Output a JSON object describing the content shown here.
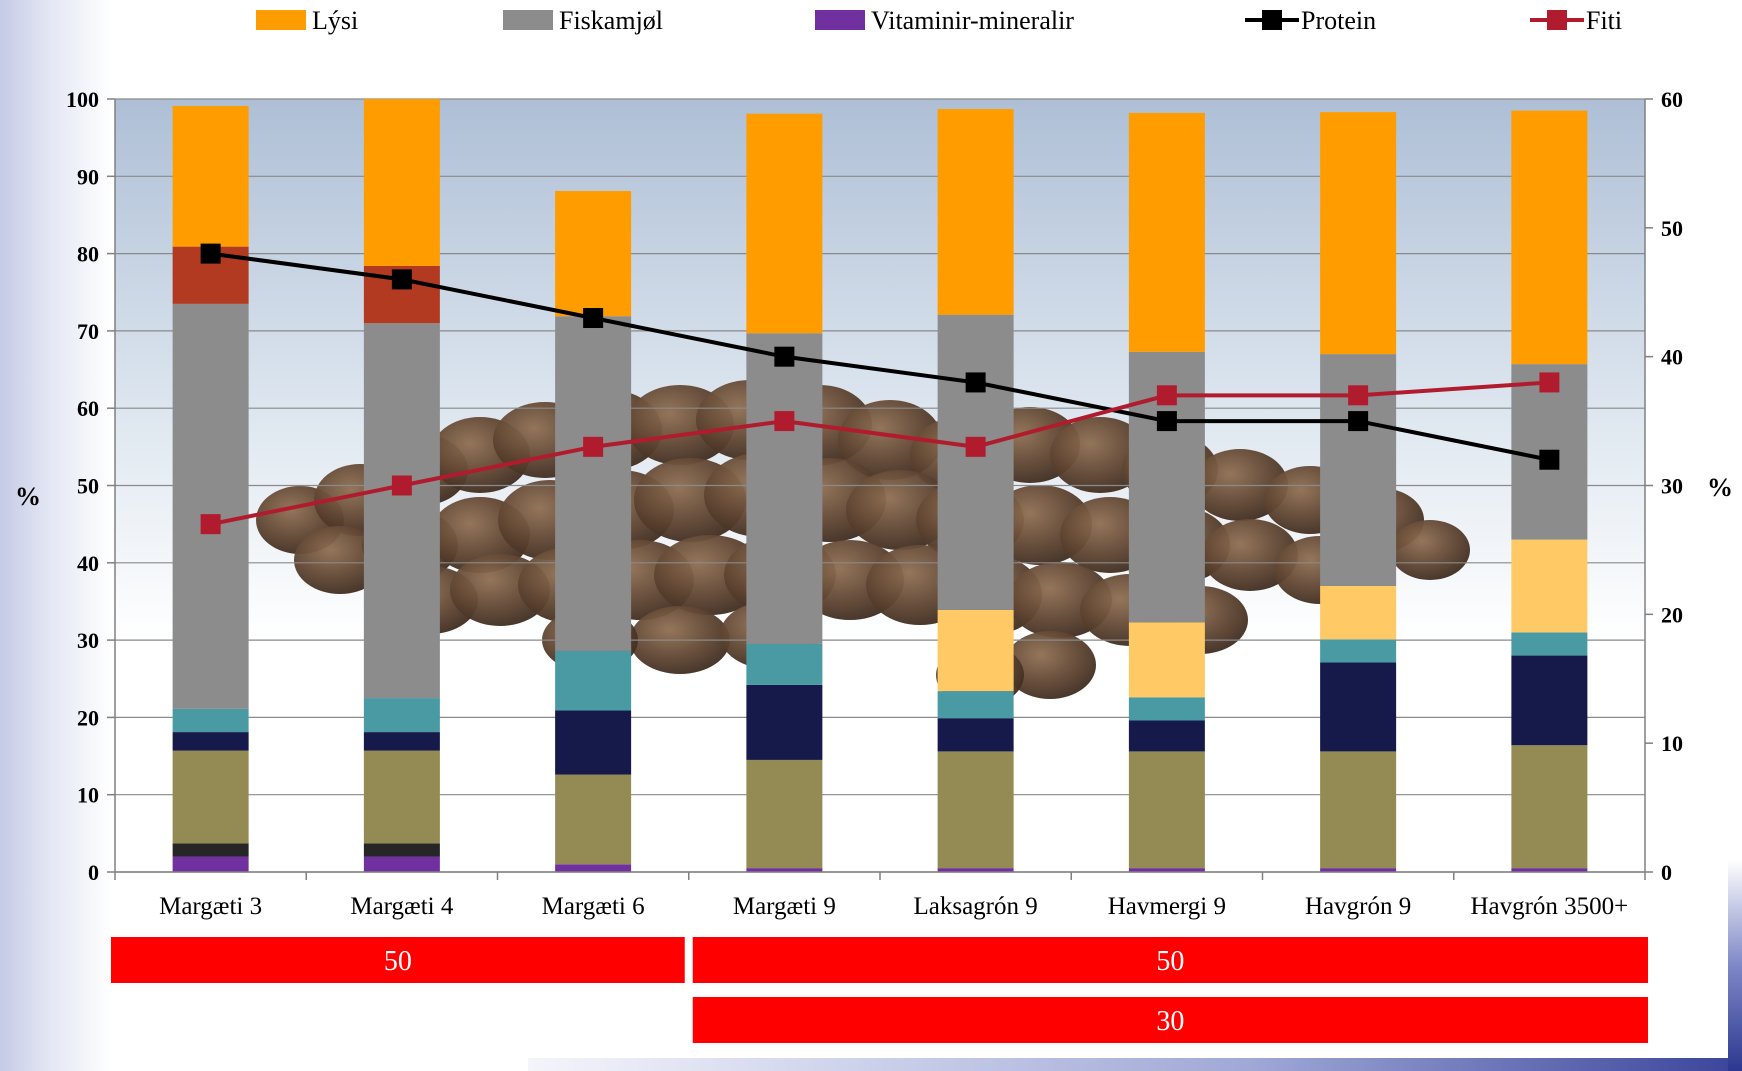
{
  "chart_data": {
    "type": "bar",
    "subtype": "stacked-bar-with-lines",
    "categories": [
      "Margæti 3",
      "Margæti 4",
      "Margæti 6",
      "Margæti 9",
      "Laksagrón 9",
      "Havmergi 9",
      "Havgrón 9",
      "Havgrón 3500+"
    ],
    "ylabel": "%",
    "y2label": "%",
    "ylim": [
      0,
      100
    ],
    "y2lim": [
      0,
      60
    ],
    "yticks": [
      0,
      10,
      20,
      30,
      40,
      50,
      60,
      70,
      80,
      90,
      100
    ],
    "y2ticks": [
      0,
      10,
      20,
      30,
      40,
      50,
      60
    ],
    "grid": true,
    "legend_position": "top",
    "stack_series": [
      {
        "name": "Vitaminir-mineralir",
        "color": "#7030a0",
        "values": [
          2.0,
          2.0,
          1.0,
          0.5,
          0.5,
          0.5,
          0.5,
          0.5
        ]
      },
      {
        "color": "#262626",
        "values": [
          1.7,
          1.7,
          0,
          0,
          0,
          0,
          0,
          0
        ]
      },
      {
        "color": "#948a54",
        "values": [
          12.0,
          12.0,
          11.6,
          14.0,
          15.1,
          15.1,
          15.1,
          15.9
        ]
      },
      {
        "color": "#151a4a",
        "values": [
          2.4,
          2.4,
          8.3,
          9.7,
          4.3,
          4.0,
          11.5,
          11.6
        ]
      },
      {
        "color": "#4a9aa4",
        "values": [
          3.0,
          4.4,
          7.7,
          5.3,
          3.5,
          3.0,
          3.0,
          3.0
        ]
      },
      {
        "color": "#ffc966",
        "values": [
          0,
          0,
          0,
          0,
          10.5,
          9.7,
          6.9,
          12.0
        ]
      },
      {
        "name": "Fiskamjøl",
        "color": "#8c8c8c",
        "values": [
          52.4,
          48.5,
          43.3,
          40.2,
          38.2,
          35.0,
          30.0,
          22.7
        ]
      },
      {
        "color": "#b23a20",
        "values": [
          7.4,
          7.4,
          0,
          0,
          0,
          0,
          0,
          0
        ]
      },
      {
        "name": "Lýsi",
        "color": "#ff9c00",
        "values": [
          18.2,
          21.6,
          16.2,
          28.4,
          26.6,
          30.9,
          31.3,
          32.8
        ]
      }
    ],
    "line_series": [
      {
        "name": "Protein",
        "color": "#000000",
        "axis": "right",
        "values": [
          48,
          46,
          43,
          40,
          38,
          35,
          35,
          32
        ]
      },
      {
        "name": "Fiti",
        "color": "#b01c2e",
        "axis": "right",
        "values": [
          27,
          30,
          33,
          35,
          33,
          37,
          37,
          38
        ]
      }
    ],
    "group_bars": [
      {
        "label": "50",
        "from": 0,
        "to": 2,
        "row": 0
      },
      {
        "label": "50",
        "from": 3,
        "to": 7,
        "row": 0
      },
      {
        "label": "30",
        "from": 3,
        "to": 7,
        "row": 1
      }
    ]
  }
}
